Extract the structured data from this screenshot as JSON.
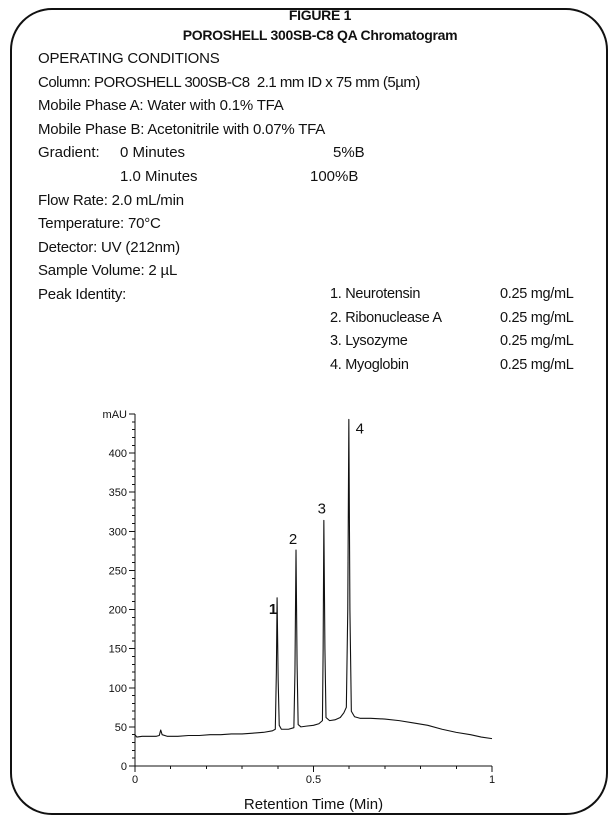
{
  "header": {
    "figure_label": "FIGURE 1",
    "title": "POROSHELL 300SB-C8 QA Chromatogram"
  },
  "conditions": {
    "heading": "OPERATING CONDITIONS",
    "column": "Column: POROSHELL 300SB-C8  2.1 mm ID x 75 mm (5µm)",
    "mobile_phase_a": "Mobile Phase A: Water with 0.1% TFA",
    "mobile_phase_b": "Mobile Phase B: Acetonitrile with 0.07% TFA",
    "gradient": {
      "label": "Gradient:",
      "steps": [
        {
          "time": "0 Minutes",
          "composition": "5%B"
        },
        {
          "time": "1.0 Minutes",
          "composition": "100%B"
        }
      ]
    },
    "flow_rate": "Flow Rate: 2.0 mL/min",
    "temperature": "Temperature: 70°C",
    "detector": "Detector: UV (212nm)",
    "sample_volume": "Sample Volume: 2 µL",
    "peak_identity_label": "Peak Identity:"
  },
  "peak_identity": [
    {
      "name": "1. Neurotensin",
      "concentration": "0.25 mg/mL"
    },
    {
      "name": "2. Ribonuclease A",
      "concentration": "0.25 mg/mL"
    },
    {
      "name": "3. Lysozyme",
      "concentration": "0.25 mg/mL"
    },
    {
      "name": "4. Myoglobin",
      "concentration": "0.25 mg/mL"
    }
  ],
  "chart_data": {
    "type": "line",
    "xlabel": "Retention Time (Min)",
    "ylabel": "mAU",
    "xlim": [
      0,
      1
    ],
    "ylim": [
      0,
      450
    ],
    "x_ticks": [
      {
        "value": 0,
        "label": "0"
      },
      {
        "value": 0.5,
        "label": "0.5"
      },
      {
        "value": 1,
        "label": "1"
      }
    ],
    "y_ticks": [
      0,
      50,
      100,
      150,
      200,
      250,
      300,
      350,
      400
    ],
    "grid": false,
    "series": [
      {
        "points": [
          [
            0.0,
            40
          ],
          [
            0.005,
            37
          ],
          [
            0.02,
            38
          ],
          [
            0.04,
            38
          ],
          [
            0.06,
            38
          ],
          [
            0.068,
            39
          ],
          [
            0.072,
            46
          ],
          [
            0.076,
            40
          ],
          [
            0.09,
            38
          ],
          [
            0.12,
            38
          ],
          [
            0.15,
            39
          ],
          [
            0.18,
            39
          ],
          [
            0.21,
            40
          ],
          [
            0.24,
            40
          ],
          [
            0.27,
            41
          ],
          [
            0.3,
            41
          ],
          [
            0.33,
            42
          ],
          [
            0.36,
            43
          ],
          [
            0.385,
            45
          ],
          [
            0.393,
            47
          ],
          [
            0.396,
            120
          ],
          [
            0.398,
            215
          ],
          [
            0.401,
            110
          ],
          [
            0.404,
            52
          ],
          [
            0.41,
            47
          ],
          [
            0.43,
            47
          ],
          [
            0.445,
            49
          ],
          [
            0.448,
            120
          ],
          [
            0.451,
            276
          ],
          [
            0.454,
            130
          ],
          [
            0.457,
            53
          ],
          [
            0.465,
            50
          ],
          [
            0.48,
            51
          ],
          [
            0.5,
            52
          ],
          [
            0.515,
            54
          ],
          [
            0.525,
            58
          ],
          [
            0.527,
            150
          ],
          [
            0.529,
            314
          ],
          [
            0.532,
            150
          ],
          [
            0.535,
            62
          ],
          [
            0.545,
            58
          ],
          [
            0.56,
            59
          ],
          [
            0.575,
            62
          ],
          [
            0.585,
            68
          ],
          [
            0.592,
            75
          ],
          [
            0.596,
            200
          ],
          [
            0.599,
            443
          ],
          [
            0.602,
            200
          ],
          [
            0.606,
            70
          ],
          [
            0.615,
            63
          ],
          [
            0.63,
            61
          ],
          [
            0.66,
            61
          ],
          [
            0.7,
            60
          ],
          [
            0.74,
            58
          ],
          [
            0.78,
            55
          ],
          [
            0.82,
            52
          ],
          [
            0.86,
            47
          ],
          [
            0.9,
            43
          ],
          [
            0.94,
            40
          ],
          [
            0.97,
            37
          ],
          [
            1.0,
            35
          ]
        ]
      }
    ],
    "peaks": [
      {
        "label": "1",
        "time": 0.398,
        "height": 215
      },
      {
        "label": "2",
        "time": 0.451,
        "height": 276
      },
      {
        "label": "3",
        "time": 0.529,
        "height": 314
      },
      {
        "label": "4",
        "time": 0.599,
        "height": 443
      }
    ]
  }
}
